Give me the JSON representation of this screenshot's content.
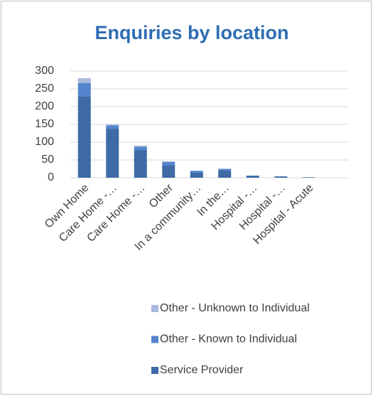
{
  "chart_data": {
    "type": "bar",
    "stacked": true,
    "title": "Enquiries by location",
    "categories": [
      "Own Home",
      "Care Home -…",
      "Care Home -…",
      "Other",
      "In a community…",
      "In the…",
      "Hospital -…",
      "Hospital -…",
      "Hospital - Acute"
    ],
    "series": [
      {
        "name": "Service Provider",
        "color": "#3e6aa6",
        "values": [
          228,
          137,
          77,
          34,
          14,
          20,
          5,
          3,
          1
        ]
      },
      {
        "name": "Other - Known to Individual",
        "color": "#5485cc",
        "values": [
          38,
          10,
          10,
          10,
          5,
          5,
          1,
          1,
          0
        ]
      },
      {
        "name": "Other - Unknown to Individual",
        "color": "#a7b9dc",
        "values": [
          14,
          3,
          3,
          2,
          1,
          0,
          0,
          0,
          1
        ]
      }
    ],
    "ylim": [
      0,
      300
    ],
    "yticks": [
      0,
      50,
      100,
      150,
      200,
      250,
      300
    ],
    "grid": true,
    "legend": "bottom"
  }
}
